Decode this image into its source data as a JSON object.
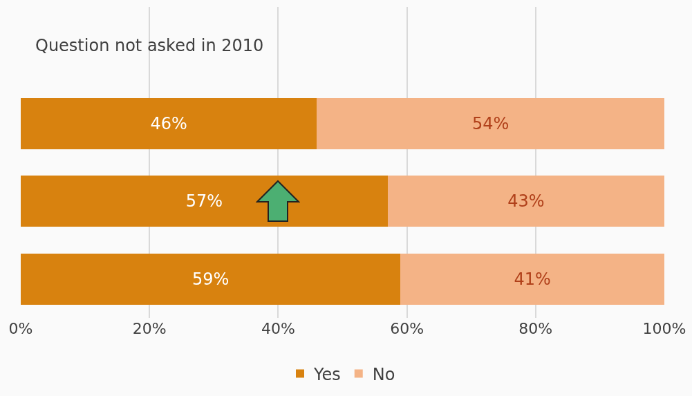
{
  "chart_data": {
    "type": "bar",
    "orientation": "horizontal",
    "stacked": true,
    "categories": [
      null,
      null,
      null,
      null
    ],
    "series": [
      {
        "name": "Yes",
        "color": "#d8820f",
        "values": [
          null,
          46,
          57,
          59
        ],
        "value_labels": [
          null,
          "46%",
          "57%",
          "59%"
        ]
      },
      {
        "name": "No",
        "color": "#f4b386",
        "values": [
          null,
          54,
          43,
          41
        ],
        "value_labels": [
          null,
          "54%",
          "43%",
          "41%"
        ]
      }
    ],
    "xlim": [
      0,
      100
    ],
    "xticks": [
      {
        "value": 0,
        "label": "0%"
      },
      {
        "value": 20,
        "label": "20%"
      },
      {
        "value": 40,
        "label": "40%"
      },
      {
        "value": 60,
        "label": "60%"
      },
      {
        "value": 80,
        "label": "80%"
      },
      {
        "value": 100,
        "label": "100%"
      }
    ],
    "annotations": [
      "Question not asked in 2010"
    ],
    "grid": "x",
    "legend": "bottom"
  }
}
